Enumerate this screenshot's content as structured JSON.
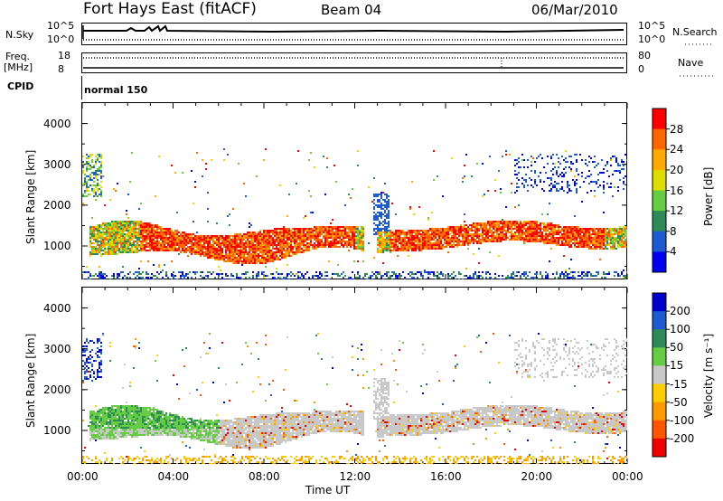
{
  "header": {
    "station": "Fort Hays East (fitACF)",
    "beam": "Beam 04",
    "date": "06/Mar/2010"
  },
  "top_panels": {
    "nsky_label": "N.Sky",
    "nsky_ticks": [
      "10^5",
      "10^0"
    ],
    "nsearch_label": "N.Search",
    "nsearch_ticks": [
      "10^5",
      "10^0"
    ],
    "freq_label_1": "Freq.",
    "freq_label_2": "[MHz]",
    "freq_ticks": [
      "18",
      "8"
    ],
    "nave_label": "Nave",
    "nave_ticks": [
      "80",
      "0"
    ],
    "cpid_label": "CPID",
    "cpid_value": "normal 150"
  },
  "chart_data": [
    {
      "type": "heatmap",
      "name": "Power",
      "ylabel": "Slant Range [km]",
      "xlabel": "Time UT",
      "ylim": [
        180,
        4500
      ],
      "xlim": [
        "00:00",
        "24:00"
      ],
      "yticks": [
        "4000",
        "3000",
        "2000",
        "1000"
      ],
      "xticks": [
        "00:00",
        "04:00",
        "08:00",
        "12:00",
        "16:00",
        "20:00",
        "00:00"
      ],
      "colorbar": {
        "label": "Power [dB]",
        "ticks": [
          "28",
          "24",
          "20",
          "16",
          "12",
          "8",
          "4"
        ],
        "colors": [
          "#ff0000",
          "#ff6600",
          "#ffaa00",
          "#dddd00",
          "#66cc44",
          "#2e8b57",
          "#1e5ad2",
          "#0000ee"
        ]
      },
      "echo_regions": [
        {
          "t_start": 0.3,
          "t_end": 12.4,
          "r_low": 650,
          "r_high": 1500,
          "dominant": "high power 20-30 dB"
        },
        {
          "t_start": 12.9,
          "t_end": 24.0,
          "r_low": 800,
          "r_high": 1650,
          "dominant": "20-30 dB"
        },
        {
          "t_start": 0.0,
          "t_end": 24.0,
          "r_low": 180,
          "r_high": 450,
          "dominant": "4-8 dB"
        }
      ]
    },
    {
      "type": "heatmap",
      "name": "Velocity",
      "ylabel": "Slant Range [km]",
      "xlabel": "Time UT",
      "ylim": [
        180,
        4500
      ],
      "xlim": [
        "00:00",
        "24:00"
      ],
      "yticks": [
        "4000",
        "3000",
        "2000",
        "1000"
      ],
      "xticks": [
        "00:00",
        "04:00",
        "08:00",
        "12:00",
        "16:00",
        "20:00",
        "00:00"
      ],
      "colorbar": {
        "label": "Velocity [m s⁻¹]",
        "ticks": [
          "200",
          "100",
          "50",
          "15",
          "-15",
          "-50",
          "-100",
          "-200"
        ],
        "colors": [
          "#0000cc",
          "#1e5ad2",
          "#2e8b57",
          "#66cc44",
          "#c8c8c8",
          "#ffcc00",
          "#ff9900",
          "#ff5500",
          "#ee0000"
        ]
      },
      "echo_regions": [
        {
          "t_start": 0.3,
          "t_end": 12.4,
          "r_low": 650,
          "r_high": 1500,
          "dominant": "+50 to +100 and ground scatter"
        },
        {
          "t_start": 12.9,
          "t_end": 24.0,
          "r_low": 800,
          "r_high": 1650,
          "dominant": "ground scatter"
        }
      ]
    }
  ],
  "xaxis_label": "Time UT",
  "xaxis_ticks": [
    "00:00",
    "04:00",
    "08:00",
    "12:00",
    "16:00",
    "20:00",
    "00:00"
  ]
}
